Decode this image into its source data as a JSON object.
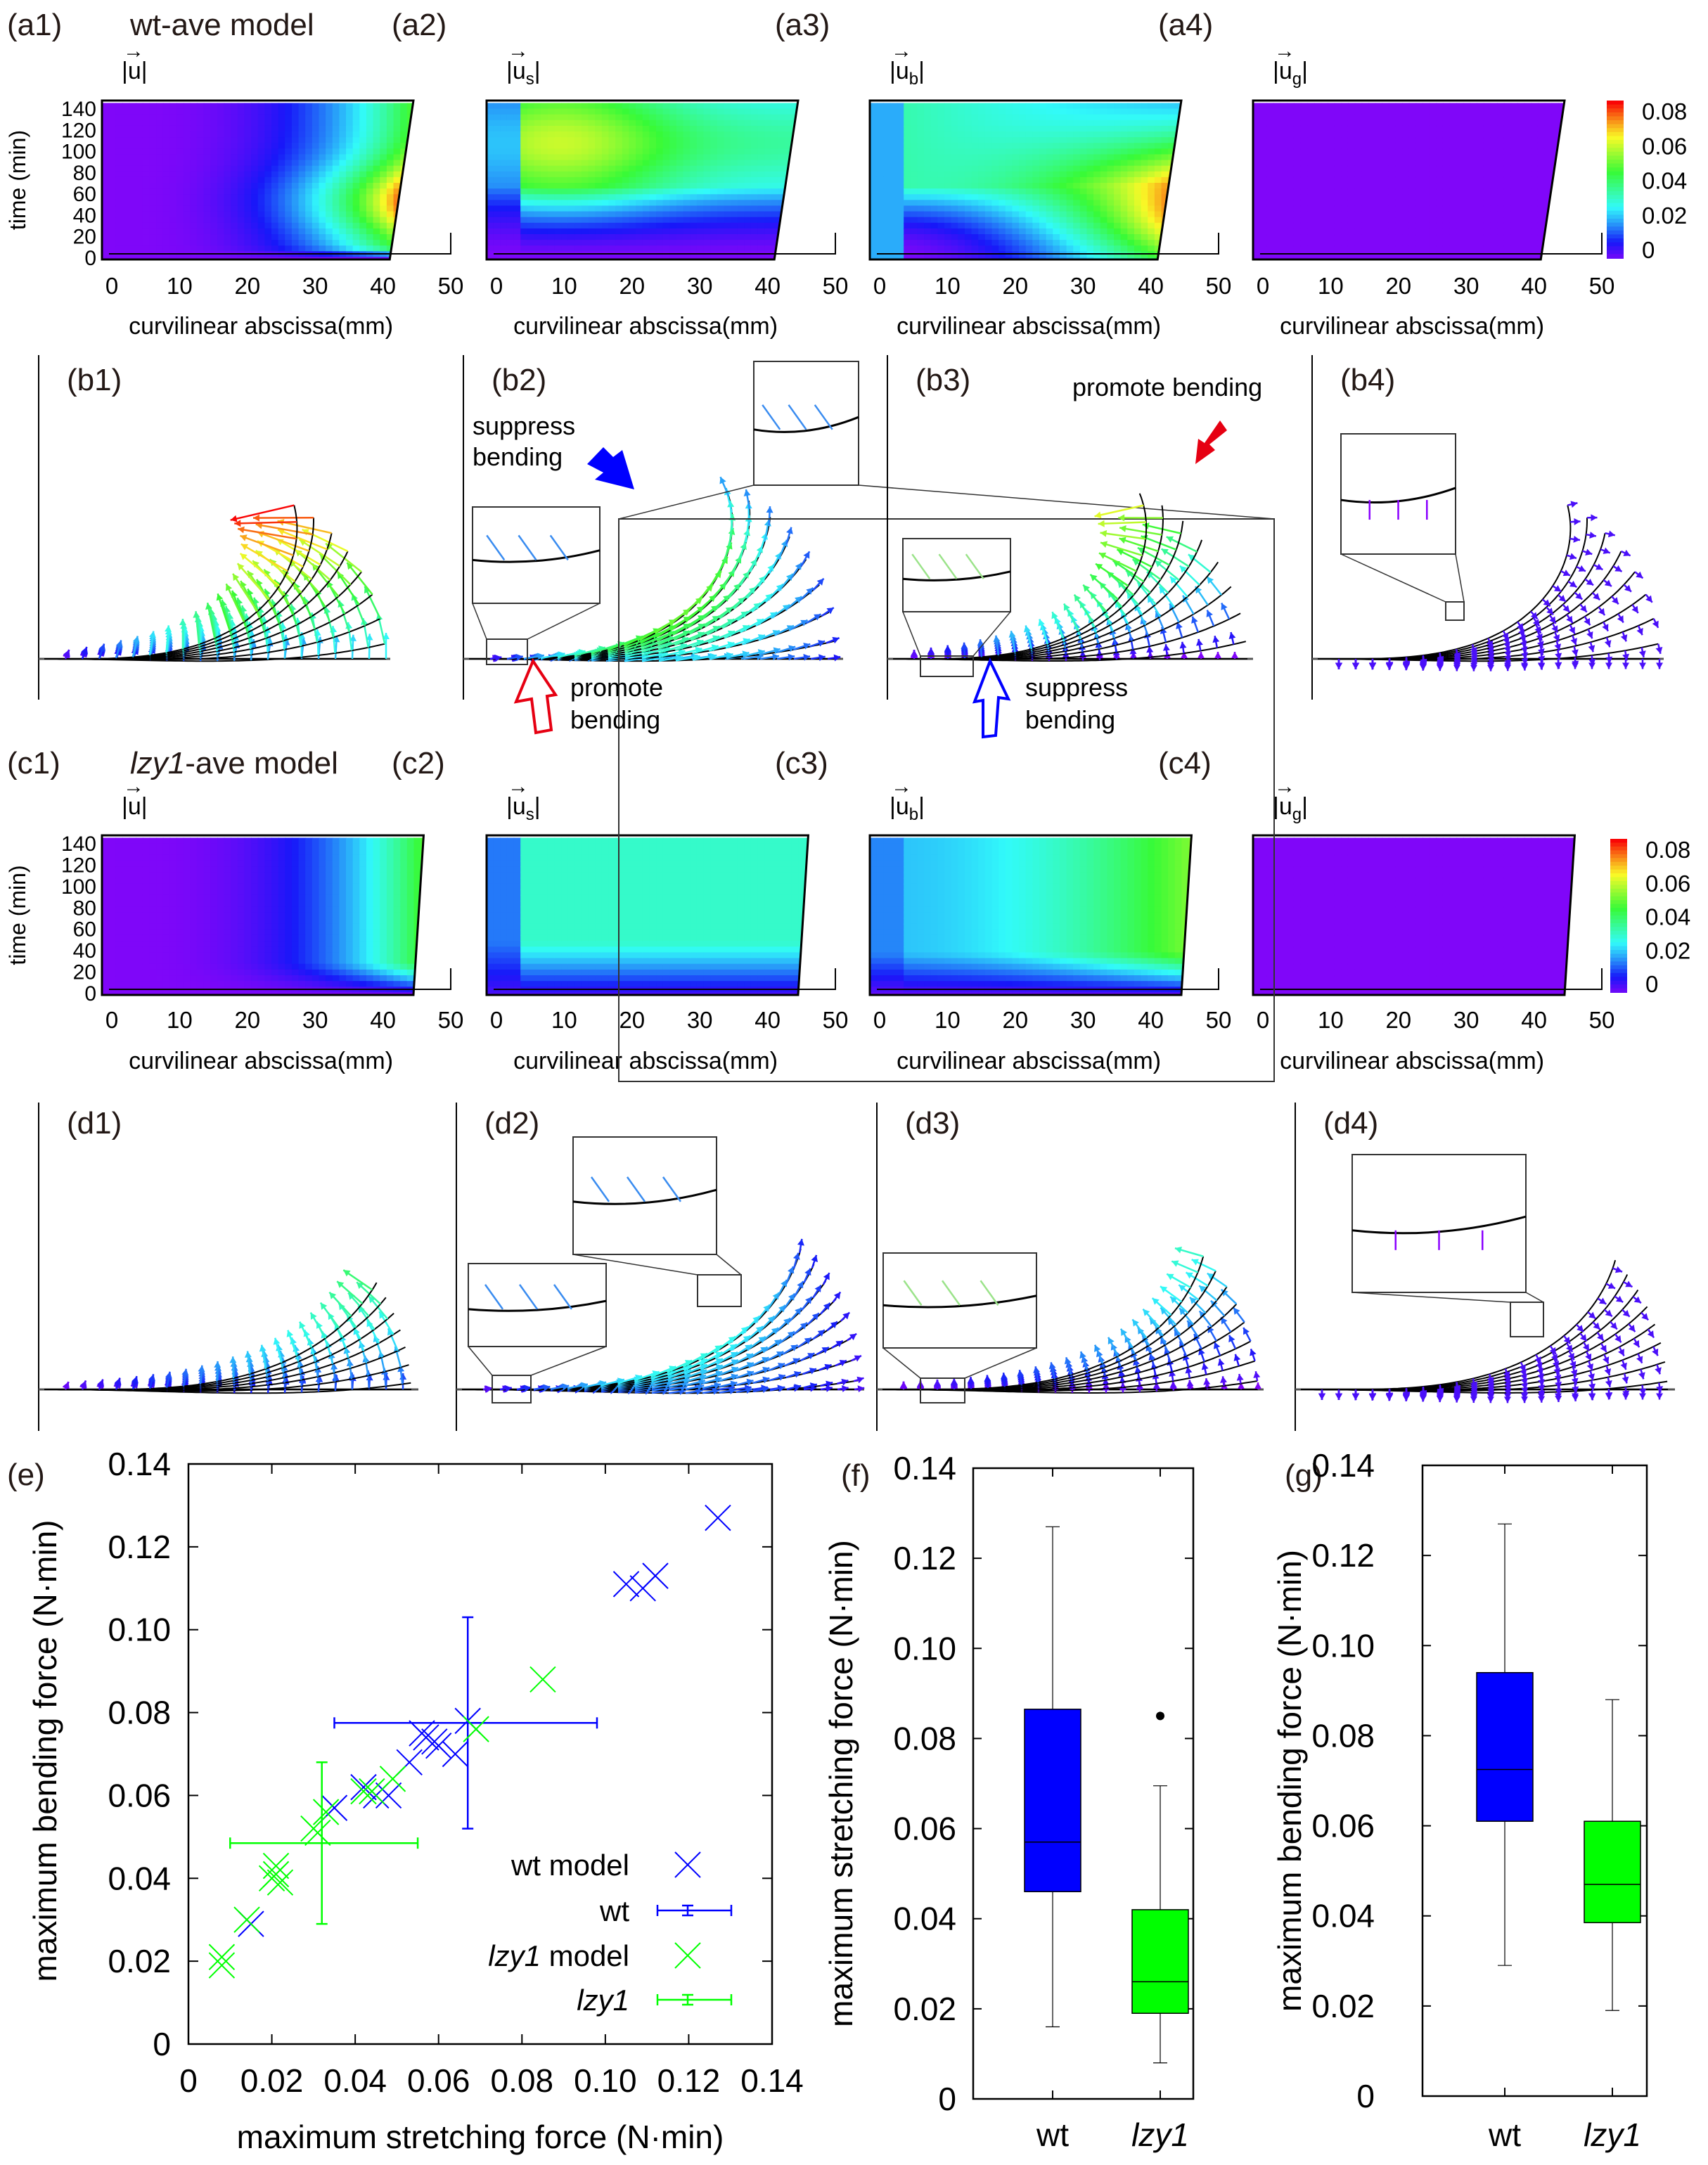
{
  "heatmap_rows": [
    {
      "panels": [
        {
          "label": "(a1)",
          "title": "wt-ave model",
          "symbol": "u",
          "sub": ""
        },
        {
          "label": "(a2)",
          "title": "",
          "symbol": "u",
          "sub": "s"
        },
        {
          "label": "(a3)",
          "title": "",
          "symbol": "u",
          "sub": "b"
        },
        {
          "label": "(a4)",
          "title": "",
          "symbol": "u",
          "sub": "g"
        }
      ]
    },
    {
      "panels": [
        {
          "label": "(c1)",
          "title_italic": "lzy1",
          "title": "-ave model",
          "symbol": "u",
          "sub": ""
        },
        {
          "label": "(c2)",
          "title": "",
          "symbol": "u",
          "sub": "s"
        },
        {
          "label": "(c3)",
          "title": "",
          "symbol": "u",
          "sub": "b"
        },
        {
          "label": "(c4)",
          "title": "",
          "symbol": "u",
          "sub": "g"
        }
      ]
    }
  ],
  "heatmap_axes": {
    "xlabel": "curvilinear abscissa(mm)",
    "ylabel": "time (min)",
    "xticks": [
      "0",
      "10",
      "20",
      "30",
      "40",
      "50"
    ],
    "yticks": [
      "140",
      "120",
      "100",
      "80",
      "60",
      "40",
      "20",
      "0"
    ],
    "colorbar_ticks": [
      "0.08",
      "0.06",
      "0.04",
      "0.02",
      "0"
    ],
    "colormap": "rainbow",
    "range": [
      0,
      0.08
    ]
  },
  "deformation_rows": [
    {
      "labels": [
        "(b1)",
        "(b2)",
        "(b3)",
        "(b4)"
      ]
    },
    {
      "labels": [
        "(d1)",
        "(d2)",
        "(d3)",
        "(d4)"
      ]
    }
  ],
  "annotations": {
    "b2_top": [
      "suppress",
      "bending"
    ],
    "b2_bottom": [
      "promote",
      "bending"
    ],
    "b3_top": "promote bending",
    "b3_bottom": [
      "suppress",
      "bending"
    ],
    "colors": {
      "suppress": "#0000ff",
      "promote": "#e60012"
    }
  },
  "chart_data": [
    {
      "panel": "(e)",
      "type": "scatter",
      "xlabel": "maximum stretching force (N·min)",
      "ylabel": "maximum bending force (N·min)",
      "xlim": [
        0,
        0.14
      ],
      "ylim": [
        0,
        0.14
      ],
      "xticks": [
        "0",
        "0.02",
        "0.04",
        "0.06",
        "0.08",
        "0.10",
        "0.12",
        "0.14"
      ],
      "yticks": [
        "0",
        "0.02",
        "0.04",
        "0.06",
        "0.08",
        "0.10",
        "0.12",
        "0.14"
      ],
      "legend_position": "bottom-right",
      "series": [
        {
          "name": "wt model",
          "name_italic": "",
          "marker": "x",
          "color": "#0000ff",
          "points": [
            [
              0.015,
              0.029
            ],
            [
              0.035,
              0.057
            ],
            [
              0.042,
              0.062
            ],
            [
              0.045,
              0.06
            ],
            [
              0.048,
              0.06
            ],
            [
              0.053,
              0.068
            ],
            [
              0.056,
              0.075
            ],
            [
              0.057,
              0.074
            ],
            [
              0.059,
              0.073
            ],
            [
              0.06,
              0.072
            ],
            [
              0.064,
              0.07
            ],
            [
              0.067,
              0.078
            ],
            [
              0.105,
              0.111
            ],
            [
              0.109,
              0.11
            ],
            [
              0.112,
              0.113
            ],
            [
              0.127,
              0.127
            ]
          ]
        },
        {
          "name": "wt",
          "name_italic": "",
          "marker": "errorbar",
          "color": "#0000ff",
          "points": [
            [
              0.067,
              0.0775
            ]
          ],
          "xerr": [
            [
              0.035,
              0.098
            ]
          ],
          "yerr": [
            [
              0.052,
              0.103
            ]
          ]
        },
        {
          "name": " model",
          "name_italic": "lzy1",
          "marker": "x",
          "color": "#00ff00",
          "points": [
            [
              0.008,
              0.021
            ],
            [
              0.008,
              0.019
            ],
            [
              0.014,
              0.03
            ],
            [
              0.02,
              0.04
            ],
            [
              0.021,
              0.043
            ],
            [
              0.021,
              0.041
            ],
            [
              0.022,
              0.039
            ],
            [
              0.03,
              0.052
            ],
            [
              0.031,
              0.051
            ],
            [
              0.033,
              0.056
            ],
            [
              0.042,
              0.061
            ],
            [
              0.044,
              0.061
            ],
            [
              0.049,
              0.064
            ],
            [
              0.069,
              0.076
            ],
            [
              0.085,
              0.088
            ]
          ]
        },
        {
          "name": "",
          "name_italic": "lzy1",
          "marker": "errorbar",
          "color": "#00ff00",
          "points": [
            [
              0.032,
              0.0485
            ]
          ],
          "xerr": [
            [
              0.01,
              0.055
            ]
          ],
          "yerr": [
            [
              0.029,
              0.068
            ]
          ]
        }
      ]
    },
    {
      "panel": "(f)",
      "type": "box",
      "ylabel": "maximum stretching force (N·min)",
      "ylim": [
        0,
        0.14
      ],
      "yticks": [
        "0",
        "0.02",
        "0.04",
        "0.06",
        "0.08",
        "0.10",
        "0.12",
        "0.14"
      ],
      "categories": [
        {
          "label": "wt",
          "italic": false
        },
        {
          "label": "lzy1",
          "italic": true
        }
      ],
      "boxes": [
        {
          "min": 0.016,
          "q1": 0.046,
          "median": 0.057,
          "q3": 0.0865,
          "max": 0.127,
          "outliers": [],
          "color": "#0000ff"
        },
        {
          "min": 0.008,
          "q1": 0.019,
          "median": 0.026,
          "q3": 0.042,
          "max": 0.0695,
          "outliers": [
            0.085
          ],
          "color": "#00ff00"
        }
      ]
    },
    {
      "panel": "(g)",
      "type": "box",
      "ylabel": "maximum bending force (N·min)",
      "ylim": [
        0,
        0.14
      ],
      "yticks": [
        "0",
        "0.02",
        "0.04",
        "0.06",
        "0.08",
        "0.10",
        "0.12",
        "0.14"
      ],
      "categories": [
        {
          "label": "wt",
          "italic": false
        },
        {
          "label": "lzy1",
          "italic": true
        }
      ],
      "boxes": [
        {
          "min": 0.029,
          "q1": 0.061,
          "median": 0.0725,
          "q3": 0.094,
          "max": 0.127,
          "outliers": [],
          "color": "#0000ff"
        },
        {
          "min": 0.019,
          "q1": 0.0385,
          "median": 0.047,
          "q3": 0.061,
          "max": 0.088,
          "outliers": [],
          "color": "#00ff00"
        }
      ]
    }
  ]
}
